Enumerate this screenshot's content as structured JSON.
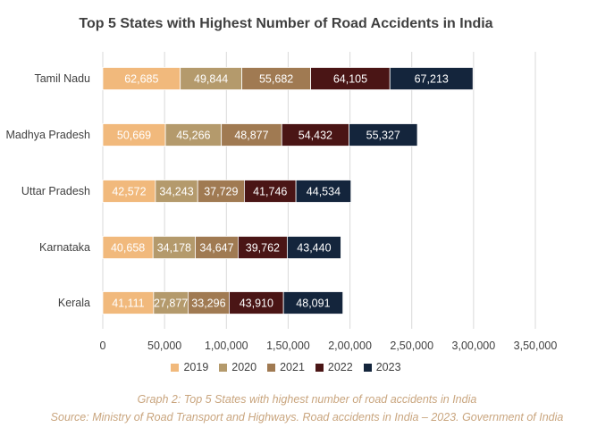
{
  "chart_data": {
    "type": "bar",
    "orientation": "horizontal",
    "stacked": true,
    "title": "Top 5 States with Highest Number of Road Accidents in India",
    "categories": [
      "Tamil Nadu",
      "Madhya Pradesh",
      "Uttar Pradesh",
      "Karnataka",
      "Kerala"
    ],
    "series": [
      {
        "name": "2019",
        "color": "#f1b97c",
        "label_color": "#ffffff",
        "values": [
          62685,
          50669,
          42572,
          40658,
          41111
        ]
      },
      {
        "name": "2020",
        "color": "#b49a6c",
        "label_color": "#ffffff",
        "values": [
          49844,
          45266,
          34243,
          34178,
          27877
        ]
      },
      {
        "name": "2021",
        "color": "#a07a52",
        "label_color": "#ffffff",
        "values": [
          55682,
          48877,
          37729,
          34647,
          33296
        ]
      },
      {
        "name": "2022",
        "color": "#4a1515",
        "label_color": "#ffffff",
        "values": [
          64105,
          54432,
          41746,
          39762,
          43910
        ]
      },
      {
        "name": "2023",
        "color": "#14253c",
        "label_color": "#ffffff",
        "values": [
          67213,
          55327,
          44534,
          43440,
          48091
        ]
      }
    ],
    "value_labels": [
      [
        "62,685",
        "50,669",
        "42,572",
        "40,658",
        "41,111"
      ],
      [
        "49,844",
        "45,266",
        "34,243",
        "34,178",
        "27,877"
      ],
      [
        "55,682",
        "48,877",
        "37,729",
        "34,647",
        "33,296"
      ],
      [
        "64,105",
        "54,432",
        "41,746",
        "39,762",
        "43,910"
      ],
      [
        "67,213",
        "55,327",
        "44,534",
        "43,440",
        "48,091"
      ]
    ],
    "xlim": [
      0,
      350000
    ],
    "xticks": [
      0,
      50000,
      100000,
      150000,
      200000,
      250000,
      300000,
      350000
    ],
    "xtick_labels": [
      "0",
      "50,000",
      "1,00,000",
      "1,50,000",
      "2,00,000",
      "2,50,000",
      "3,00,000",
      "3,50,000"
    ],
    "grid": "vertical",
    "legend_position": "bottom"
  },
  "caption": {
    "line1": "Graph 2: Top 5 States with highest number of road accidents in India",
    "line2": "Source: Ministry of Road Transport and Highways. Road accidents in India – 2023. Government of India"
  }
}
